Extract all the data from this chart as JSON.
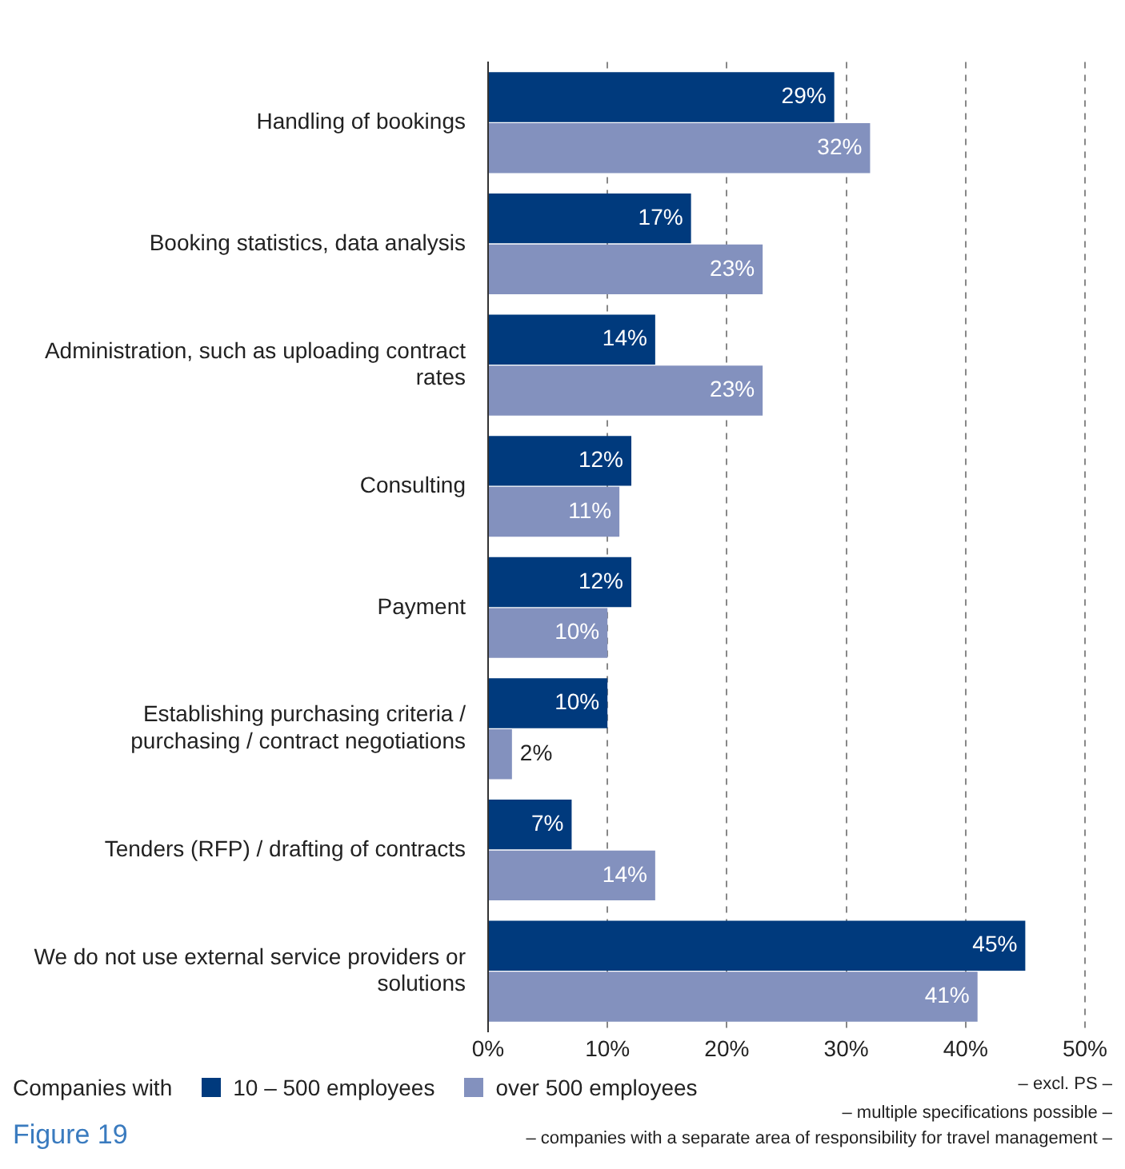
{
  "chart_data": {
    "type": "bar",
    "orientation": "horizontal",
    "categories": [
      "Handling of bookings",
      "Booking statistics, data analysis",
      "Administration, such as uploading contract rates",
      "Consulting",
      "Payment",
      "Establishing purchasing criteria / purchasing / contract negotiations",
      "Tenders (RFP) / drafting of contracts",
      "We do not use external service providers or solutions"
    ],
    "series": [
      {
        "name": "10 – 500 employees",
        "color": "#003a7d",
        "values": [
          29,
          17,
          14,
          12,
          12,
          10,
          7,
          45
        ],
        "value_labels": [
          "29%",
          "17%",
          "14%",
          "12%",
          "12%",
          "10%",
          "7%",
          "45%"
        ]
      },
      {
        "name": "over 500 employees",
        "color": "#8391be",
        "values": [
          32,
          23,
          23,
          11,
          10,
          2,
          14,
          41
        ],
        "value_labels": [
          "32%",
          "23%",
          "23%",
          "11%",
          "10%",
          "2%",
          "14%",
          "41%"
        ]
      }
    ],
    "xlim": [
      0,
      50
    ],
    "xticks": [
      {
        "value": 0,
        "label": "0%"
      },
      {
        "value": 10,
        "label": "10%"
      },
      {
        "value": 20,
        "label": "20%"
      },
      {
        "value": 30,
        "label": "30%"
      },
      {
        "value": 40,
        "label": "40%"
      },
      {
        "value": 50,
        "label": "50%"
      }
    ],
    "grid": "x",
    "legend": "bottom left",
    "legend_title": "Companies with",
    "annotations": [
      "Figure 19",
      "– excl. PS –",
      "– multiple specifications possible –",
      "– companies with a separate area of responsibility for travel management –"
    ]
  }
}
